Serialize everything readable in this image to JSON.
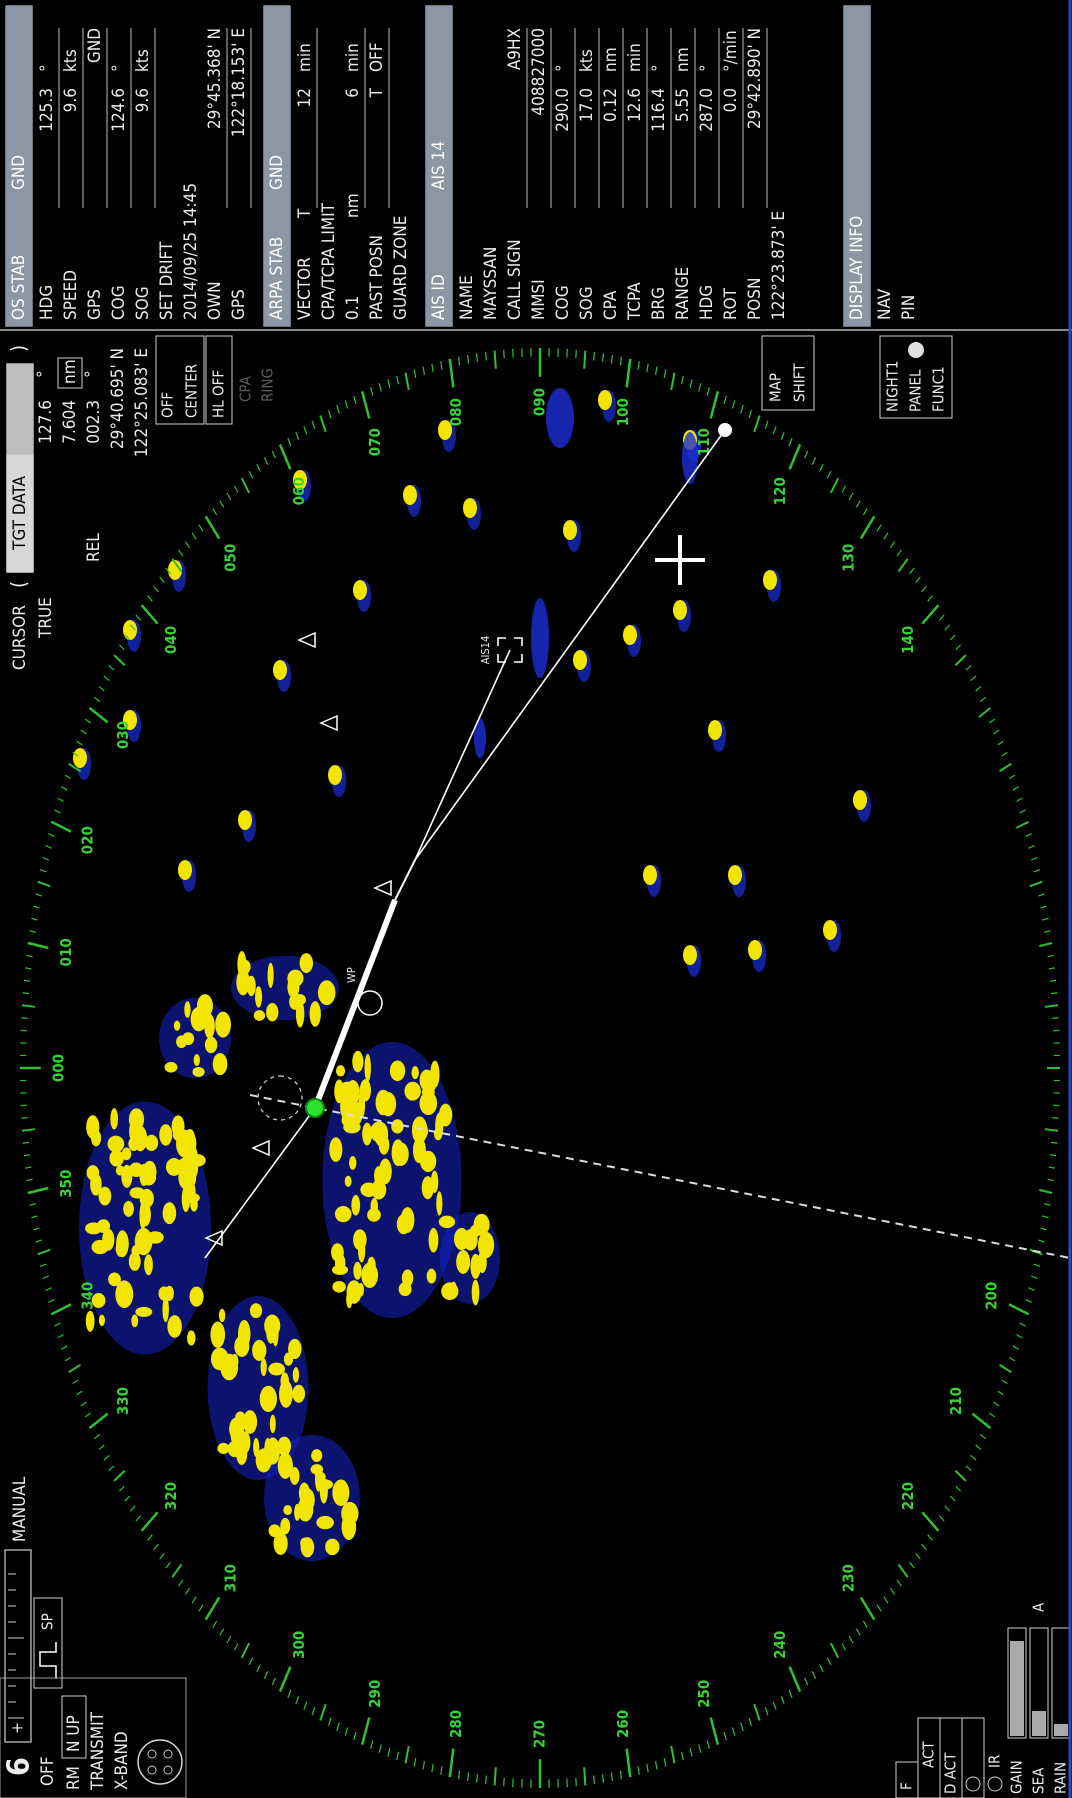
{
  "top_left": {
    "range": "6",
    "plus": "+",
    "tune": "MANUAL",
    "mode_off": "OFF",
    "pulse": "SP",
    "motion": "RM",
    "orientation": "N UP",
    "status": "TRANSMIT",
    "band": "X-BAND"
  },
  "cursor": {
    "title": "CURSOR",
    "open": "(",
    "tab": "TGT DATA",
    "close": ")",
    "true": "TRUE",
    "bearing": "127.6",
    "deg": "°",
    "range": "7.604",
    "range_unit": "nm",
    "rel": "REL",
    "rel_bearing": "002.3",
    "rel_deg": "°",
    "lat": "29°40.695' N",
    "lon": "122°25.083' E"
  },
  "buttons": {
    "off_center": [
      "OFF",
      "CENTER"
    ],
    "hl_off": "HL OFF",
    "cpa_ring": [
      "CPA",
      "RING"
    ],
    "map_shift": [
      "MAP",
      "SHIFT"
    ],
    "night": "NIGHT1",
    "panel": "PANEL",
    "func": "FUNC1"
  },
  "panel": {
    "sections": [
      {
        "header": [
          "OS STAB",
          "GND"
        ],
        "rows": [
          [
            "HDG",
            "125.3",
            "°"
          ],
          [
            "SPEED",
            "9.6",
            "kts"
          ],
          [
            "GPS",
            "GND"
          ],
          [
            "COG",
            "124.6",
            "°"
          ],
          [
            "SOG",
            "9.6",
            "kts"
          ],
          [
            "SET DRIFT"
          ],
          [
            "2014/09/25 14:45"
          ],
          [
            "OWN",
            "29°45.368' N"
          ],
          [
            "GPS",
            "122°18.153' E"
          ]
        ]
      },
      {
        "header": [
          "ARPA STAB",
          "GND"
        ],
        "rows": [
          [
            "VECTOR",
            "T",
            "12",
            "min"
          ],
          [
            "CPA/TCPA LIMIT"
          ],
          [
            "0.1",
            "nm",
            "6",
            "min"
          ],
          [
            "PAST POSN",
            "T",
            "OFF"
          ],
          [
            "GUARD ZONE"
          ]
        ]
      },
      {
        "header": [
          "AIS ID",
          "AIS 14"
        ],
        "rows": [
          [
            "NAME"
          ],
          [
            "MAYSSAN"
          ],
          [
            "CALL SIGN",
            "A9HX"
          ],
          [
            "MMSI",
            "408827000"
          ],
          [
            "COG",
            "290.0",
            "°"
          ],
          [
            "SOG",
            "17.0",
            "kts"
          ],
          [
            "CPA",
            "0.12",
            "nm"
          ],
          [
            "TCPA",
            "12.6",
            "min"
          ],
          [
            "BRG",
            "116.4",
            "°"
          ],
          [
            "RANGE",
            "5.55",
            "nm"
          ],
          [
            "HDG",
            "287.0",
            "°"
          ],
          [
            "ROT",
            "0.0",
            "°/min"
          ],
          [
            "POSN",
            "29°42.890' N"
          ],
          [
            "122°23.873' E"
          ]
        ]
      },
      {
        "header": [
          "DISPLAY INFO"
        ],
        "rows": [
          [
            "NAV"
          ],
          [
            "PIN"
          ]
        ]
      }
    ]
  },
  "bottom_left": {
    "f": "F",
    "act": "ACT",
    "dact": "D ACT",
    "ir": "IR",
    "gain": "GAIN",
    "sea": "SEA",
    "rain": "RAIN",
    "a": "A"
  },
  "radar": {
    "bearings": [
      200,
      210,
      220,
      230,
      240,
      250,
      260,
      270,
      280,
      290,
      300,
      310,
      320,
      330,
      340,
      350,
      {
        "value": 0,
        "label": "000"
      },
      {
        "value": 10,
        "label": "010"
      },
      {
        "value": 20,
        "label": "020"
      },
      {
        "value": 30,
        "label": "030"
      },
      {
        "value": 40,
        "label": "040"
      },
      {
        "value": 50,
        "label": "050"
      },
      {
        "value": 60,
        "label": "060"
      },
      {
        "value": 70,
        "label": "070"
      },
      {
        "value": 80,
        "label": "080"
      },
      {
        "value": 90,
        "label": "090"
      },
      100,
      110,
      120,
      130,
      140
    ],
    "target_label": "AIS14",
    "waypoint_label": "WP"
  }
}
